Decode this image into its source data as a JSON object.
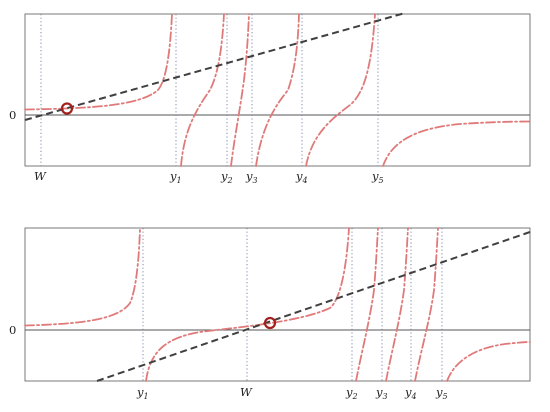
{
  "panels": [
    {
      "id": "top",
      "zero_label": "0",
      "W_label": "W",
      "poles": [
        {
          "label": "y",
          "sub": "1"
        },
        {
          "label": "y",
          "sub": "2"
        },
        {
          "label": "y",
          "sub": "3"
        },
        {
          "label": "y",
          "sub": "4"
        },
        {
          "label": "y",
          "sub": "5"
        }
      ]
    },
    {
      "id": "bottom",
      "zero_label": "0",
      "W_label": "W",
      "poles": [
        {
          "label": "y",
          "sub": "1"
        },
        {
          "label": "y",
          "sub": "2"
        },
        {
          "label": "y",
          "sub": "3"
        },
        {
          "label": "y",
          "sub": "4"
        },
        {
          "label": "y",
          "sub": "5"
        }
      ]
    }
  ],
  "colors": {
    "curve": "#e07a7a",
    "line": "#404040",
    "marker": "#a3201e",
    "frame": "#6b6b6b",
    "guide": "#6f7fa0"
  }
}
